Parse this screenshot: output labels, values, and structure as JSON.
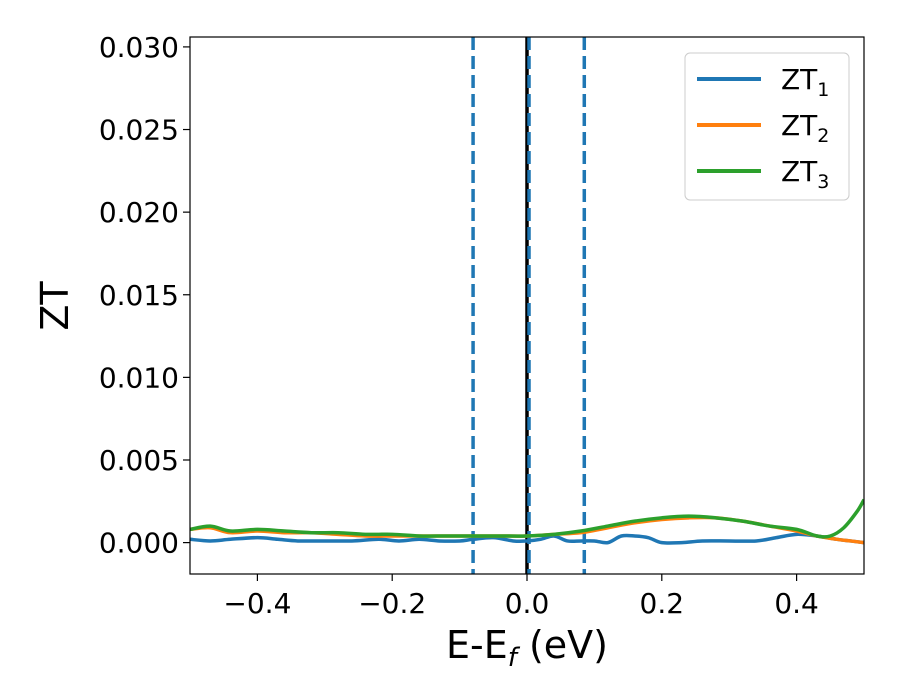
{
  "chart_data": {
    "type": "line",
    "xlabel": {
      "main": "E-E",
      "sub": "f",
      "tail": " (eV)"
    },
    "ylabel": "ZT",
    "xlim": [
      -0.5,
      0.5
    ],
    "ylim": [
      -0.0019,
      0.0306
    ],
    "xticks": [
      -0.4,
      -0.2,
      0.0,
      0.2,
      0.4
    ],
    "xtick_labels": [
      "−0.4",
      "−0.2",
      "0.0",
      "0.2",
      "0.4"
    ],
    "yticks": [
      0.0,
      0.005,
      0.01,
      0.015,
      0.02,
      0.025,
      0.03
    ],
    "ytick_labels": [
      "0.000",
      "0.005",
      "0.010",
      "0.015",
      "0.020",
      "0.025",
      "0.030"
    ],
    "grid": false,
    "legend_placement": "top-right",
    "vlines": [
      {
        "x": -0.08,
        "style": "dashed",
        "color": "#1f77b4"
      },
      {
        "x": 0.0,
        "style": "solid",
        "color": "#000000"
      },
      {
        "x": 0.003,
        "style": "dashed",
        "color": "#1f77b4"
      },
      {
        "x": 0.085,
        "style": "dashed",
        "color": "#1f77b4"
      }
    ],
    "series": [
      {
        "name": {
          "main": "ZT",
          "sub": "1"
        },
        "color": "#1f77b4",
        "x": [
          -0.5,
          -0.47,
          -0.44,
          -0.4,
          -0.37,
          -0.34,
          -0.3,
          -0.26,
          -0.22,
          -0.19,
          -0.16,
          -0.13,
          -0.1,
          -0.08,
          -0.05,
          -0.02,
          0.0,
          0.02,
          0.04,
          0.06,
          0.08,
          0.1,
          0.12,
          0.14,
          0.16,
          0.18,
          0.2,
          0.23,
          0.26,
          0.3,
          0.34,
          0.37,
          0.4,
          0.43,
          0.46,
          0.48,
          0.5
        ],
        "y": [
          0.0002,
          0.0001,
          0.0002,
          0.0003,
          0.0002,
          0.0001,
          0.0001,
          0.0001,
          0.0002,
          0.0001,
          0.0002,
          0.0001,
          0.0001,
          0.0002,
          0.0003,
          0.0001,
          0.0001,
          0.0002,
          0.0004,
          0.0001,
          0.0001,
          0.0001,
          0.0,
          0.0004,
          0.0004,
          0.0003,
          0.0,
          0.0,
          0.0001,
          0.0001,
          0.0001,
          0.0003,
          0.0005,
          0.0004,
          0.0002,
          0.0001,
          0.0
        ]
      },
      {
        "name": {
          "main": "ZT",
          "sub": "2"
        },
        "color": "#ff7f0e",
        "x": [
          -0.5,
          -0.47,
          -0.44,
          -0.4,
          -0.36,
          -0.32,
          -0.28,
          -0.24,
          -0.2,
          -0.16,
          -0.12,
          -0.08,
          -0.04,
          0.0,
          0.04,
          0.08,
          0.12,
          0.16,
          0.2,
          0.24,
          0.28,
          0.32,
          0.36,
          0.4,
          0.43,
          0.46,
          0.48,
          0.5
        ],
        "y": [
          0.0008,
          0.0009,
          0.0006,
          0.0007,
          0.0006,
          0.0006,
          0.0005,
          0.0004,
          0.0004,
          0.0004,
          0.0004,
          0.0004,
          0.0004,
          0.0004,
          0.0005,
          0.0006,
          0.0009,
          0.0012,
          0.0014,
          0.0015,
          0.0015,
          0.0013,
          0.001,
          0.0007,
          0.0004,
          0.0002,
          0.0001,
          0.0
        ]
      },
      {
        "name": {
          "main": "ZT",
          "sub": "3"
        },
        "color": "#2ca02c",
        "x": [
          -0.5,
          -0.47,
          -0.44,
          -0.4,
          -0.36,
          -0.32,
          -0.28,
          -0.24,
          -0.2,
          -0.16,
          -0.12,
          -0.08,
          -0.04,
          0.0,
          0.04,
          0.08,
          0.12,
          0.16,
          0.2,
          0.24,
          0.28,
          0.32,
          0.36,
          0.4,
          0.43,
          0.45,
          0.47,
          0.49,
          0.5
        ],
        "y": [
          0.0008,
          0.001,
          0.0007,
          0.0008,
          0.0007,
          0.0006,
          0.0006,
          0.0005,
          0.0005,
          0.0004,
          0.0004,
          0.0004,
          0.0004,
          0.0004,
          0.0005,
          0.0007,
          0.001,
          0.0013,
          0.0015,
          0.0016,
          0.0015,
          0.0013,
          0.001,
          0.0008,
          0.0004,
          0.0004,
          0.0009,
          0.0019,
          0.0026
        ]
      }
    ]
  }
}
